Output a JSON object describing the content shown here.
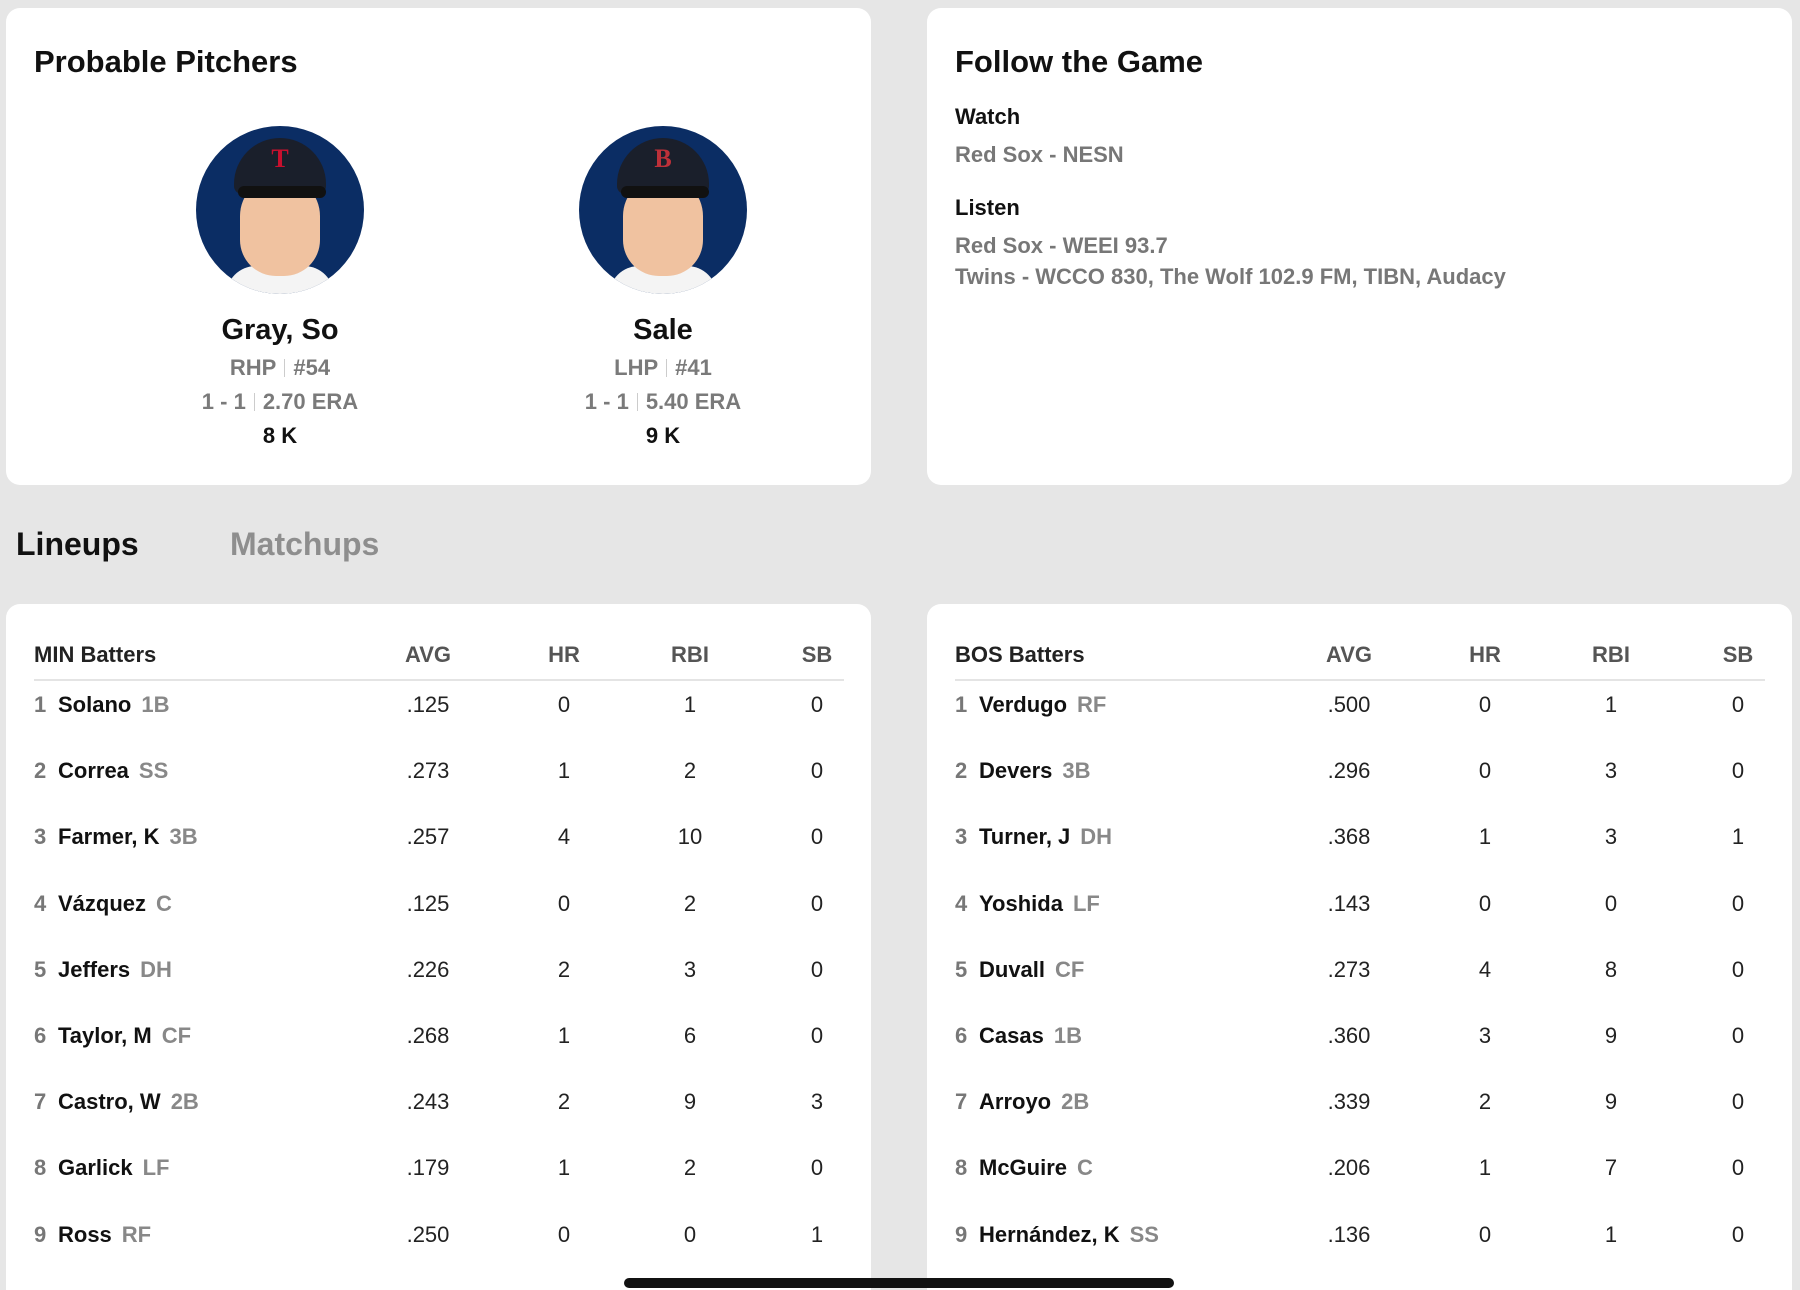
{
  "pitchers_card": {
    "title": "Probable Pitchers",
    "pitchers": [
      {
        "name": "Gray, So",
        "throws": "RHP",
        "number": "#54",
        "record": "1 - 1",
        "era": "2.70 ERA",
        "strikeouts": "8 K",
        "team_logo": "twins-logo",
        "logo_letter": "T",
        "logo_color": "#c8102e"
      },
      {
        "name": "Sale",
        "throws": "LHP",
        "number": "#41",
        "record": "1 - 1",
        "era": "5.40 ERA",
        "strikeouts": "9 K",
        "team_logo": "red-sox-logo",
        "logo_letter": "B",
        "logo_color": "#bd3039"
      }
    ]
  },
  "follow_card": {
    "title": "Follow the Game",
    "watch_label": "Watch",
    "watch": "Red Sox - NESN",
    "listen_label": "Listen",
    "listen": [
      "Red Sox - WEEI 93.7",
      "Twins - WCCO 830, The Wolf 102.9 FM, TIBN, Audacy"
    ]
  },
  "tabs": {
    "lineups": "Lineups",
    "matchups": "Matchups"
  },
  "lineups": [
    {
      "header": "MIN Batters",
      "columns": [
        "AVG",
        "HR",
        "RBI",
        "SB"
      ],
      "rows": [
        {
          "order": "1",
          "name": "Solano",
          "pos": "1B",
          "avg": ".125",
          "hr": "0",
          "rbi": "1",
          "sb": "0"
        },
        {
          "order": "2",
          "name": "Correa",
          "pos": "SS",
          "avg": ".273",
          "hr": "1",
          "rbi": "2",
          "sb": "0"
        },
        {
          "order": "3",
          "name": "Farmer, K",
          "pos": "3B",
          "avg": ".257",
          "hr": "4",
          "rbi": "10",
          "sb": "0"
        },
        {
          "order": "4",
          "name": "Vázquez",
          "pos": "C",
          "avg": ".125",
          "hr": "0",
          "rbi": "2",
          "sb": "0"
        },
        {
          "order": "5",
          "name": "Jeffers",
          "pos": "DH",
          "avg": ".226",
          "hr": "2",
          "rbi": "3",
          "sb": "0"
        },
        {
          "order": "6",
          "name": "Taylor, M",
          "pos": "CF",
          "avg": ".268",
          "hr": "1",
          "rbi": "6",
          "sb": "0"
        },
        {
          "order": "7",
          "name": "Castro, W",
          "pos": "2B",
          "avg": ".243",
          "hr": "2",
          "rbi": "9",
          "sb": "3"
        },
        {
          "order": "8",
          "name": "Garlick",
          "pos": "LF",
          "avg": ".179",
          "hr": "1",
          "rbi": "2",
          "sb": "0"
        },
        {
          "order": "9",
          "name": "Ross",
          "pos": "RF",
          "avg": ".250",
          "hr": "0",
          "rbi": "0",
          "sb": "1"
        }
      ]
    },
    {
      "header": "BOS Batters",
      "columns": [
        "AVG",
        "HR",
        "RBI",
        "SB"
      ],
      "rows": [
        {
          "order": "1",
          "name": "Verdugo",
          "pos": "RF",
          "avg": ".500",
          "hr": "0",
          "rbi": "1",
          "sb": "0"
        },
        {
          "order": "2",
          "name": "Devers",
          "pos": "3B",
          "avg": ".296",
          "hr": "0",
          "rbi": "3",
          "sb": "0"
        },
        {
          "order": "3",
          "name": "Turner, J",
          "pos": "DH",
          "avg": ".368",
          "hr": "1",
          "rbi": "3",
          "sb": "1"
        },
        {
          "order": "4",
          "name": "Yoshida",
          "pos": "LF",
          "avg": ".143",
          "hr": "0",
          "rbi": "0",
          "sb": "0"
        },
        {
          "order": "5",
          "name": "Duvall",
          "pos": "CF",
          "avg": ".273",
          "hr": "4",
          "rbi": "8",
          "sb": "0"
        },
        {
          "order": "6",
          "name": "Casas",
          "pos": "1B",
          "avg": ".360",
          "hr": "3",
          "rbi": "9",
          "sb": "0"
        },
        {
          "order": "7",
          "name": "Arroyo",
          "pos": "2B",
          "avg": ".339",
          "hr": "2",
          "rbi": "9",
          "sb": "0"
        },
        {
          "order": "8",
          "name": "McGuire",
          "pos": "C",
          "avg": ".206",
          "hr": "1",
          "rbi": "7",
          "sb": "0"
        },
        {
          "order": "9",
          "name": "Hernández, K",
          "pos": "SS",
          "avg": ".136",
          "hr": "0",
          "rbi": "1",
          "sb": "0"
        }
      ]
    }
  ]
}
